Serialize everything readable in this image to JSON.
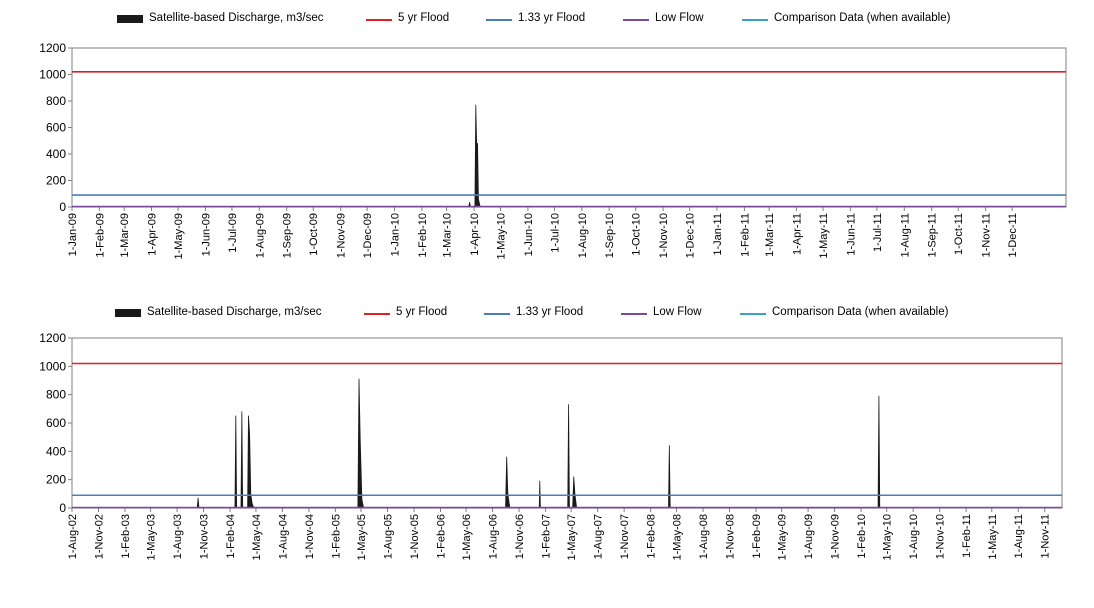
{
  "colors": {
    "discharge": "#1a1a1a",
    "flood_5yr": "#e02020",
    "flood_133yr": "#4a7ebb",
    "low_flow": "#7a4a9a",
    "comparison": "#3aa0c8",
    "axis": "#808080"
  },
  "legend": {
    "discharge": "Satellite-based Discharge, m3/sec",
    "flood_5yr": "5 yr Flood",
    "flood_133yr": "1.33 yr Flood",
    "low_flow": "Low Flow",
    "comparison": "Comparison Data (when available)"
  },
  "chart_data": [
    {
      "type": "area",
      "legend_position": "top",
      "grid": false,
      "ylim": [
        0,
        1200
      ],
      "yticks": [
        0,
        200,
        400,
        600,
        800,
        1000,
        1200
      ],
      "x_range": [
        "2009-01-01",
        "2012-01-31"
      ],
      "x_ticks": [
        "1-Jan-09",
        "1-Feb-09",
        "1-Mar-09",
        "1-Apr-09",
        "1-May-09",
        "1-Jun-09",
        "1-Jul-09",
        "1-Aug-09",
        "1-Sep-09",
        "1-Oct-09",
        "1-Nov-09",
        "1-Dec-09",
        "1-Jan-10",
        "1-Feb-10",
        "1-Mar-10",
        "1-Apr-10",
        "1-May-10",
        "1-Jun-10",
        "1-Jul-10",
        "1-Aug-10",
        "1-Sep-10",
        "1-Oct-10",
        "1-Nov-10",
        "1-Dec-10",
        "1-Jan-11",
        "1-Feb-11",
        "1-Mar-11",
        "1-Apr-11",
        "1-May-11",
        "1-Jun-11",
        "1-Jul-11",
        "1-Aug-11",
        "1-Sep-11",
        "1-Oct-11",
        "1-Nov-11",
        "1-Dec-11"
      ],
      "reference_lines": [
        {
          "key": "flood_5yr",
          "value": 1020
        },
        {
          "key": "flood_133yr",
          "value": 90
        },
        {
          "key": "low_flow",
          "value": 3
        }
      ],
      "series": [
        {
          "key": "discharge",
          "points": [
            {
              "x": "2010-03-26",
              "y": 0
            },
            {
              "x": "2010-03-27",
              "y": 35
            },
            {
              "x": "2010-03-28",
              "y": 0
            },
            {
              "x": "2010-04-02",
              "y": 0
            },
            {
              "x": "2010-04-03",
              "y": 770
            },
            {
              "x": "2010-04-04",
              "y": 470
            },
            {
              "x": "2010-04-05",
              "y": 480
            },
            {
              "x": "2010-04-06",
              "y": 60
            },
            {
              "x": "2010-04-08",
              "y": 0
            }
          ]
        }
      ]
    },
    {
      "type": "area",
      "legend_position": "top",
      "grid": false,
      "ylim": [
        0,
        1200
      ],
      "yticks": [
        0,
        200,
        400,
        600,
        800,
        1000,
        1200
      ],
      "x_range": [
        "2002-08-01",
        "2011-12-31"
      ],
      "x_ticks": [
        "1-Aug-02",
        "1-Nov-02",
        "1-Feb-03",
        "1-May-03",
        "1-Aug-03",
        "1-Nov-03",
        "1-Feb-04",
        "1-May-04",
        "1-Aug-04",
        "1-Nov-04",
        "1-Feb-05",
        "1-May-05",
        "1-Aug-05",
        "1-Nov-05",
        "1-Feb-06",
        "1-May-06",
        "1-Aug-06",
        "1-Nov-06",
        "1-Feb-07",
        "1-May-07",
        "1-Aug-07",
        "1-Nov-07",
        "1-Feb-08",
        "1-May-08",
        "1-Aug-08",
        "1-Nov-08",
        "1-Feb-09",
        "1-May-09",
        "1-Aug-09",
        "1-Nov-09",
        "1-Feb-10",
        "1-May-10",
        "1-Aug-10",
        "1-Nov-10",
        "1-Feb-11",
        "1-May-11",
        "1-Aug-11",
        "1-Nov-11"
      ],
      "reference_lines": [
        {
          "key": "flood_5yr",
          "value": 1020
        },
        {
          "key": "flood_133yr",
          "value": 90
        },
        {
          "key": "low_flow",
          "value": 3
        }
      ],
      "series": [
        {
          "key": "discharge",
          "points": [
            {
              "x": "2003-10-10",
              "y": 0
            },
            {
              "x": "2003-10-13",
              "y": 70
            },
            {
              "x": "2003-10-16",
              "y": 0
            },
            {
              "x": "2004-02-18",
              "y": 0
            },
            {
              "x": "2004-02-21",
              "y": 650
            },
            {
              "x": "2004-02-24",
              "y": 0
            },
            {
              "x": "2004-03-10",
              "y": 0
            },
            {
              "x": "2004-03-13",
              "y": 680
            },
            {
              "x": "2004-03-16",
              "y": 0
            },
            {
              "x": "2004-04-02",
              "y": 0
            },
            {
              "x": "2004-04-05",
              "y": 650
            },
            {
              "x": "2004-04-09",
              "y": 520
            },
            {
              "x": "2004-04-13",
              "y": 100
            },
            {
              "x": "2004-04-18",
              "y": 30
            },
            {
              "x": "2004-04-24",
              "y": 0
            },
            {
              "x": "2005-04-20",
              "y": 0
            },
            {
              "x": "2005-04-24",
              "y": 910
            },
            {
              "x": "2005-04-28",
              "y": 500
            },
            {
              "x": "2005-05-04",
              "y": 60
            },
            {
              "x": "2005-05-10",
              "y": 0
            },
            {
              "x": "2006-09-15",
              "y": 0
            },
            {
              "x": "2006-09-19",
              "y": 360
            },
            {
              "x": "2006-09-23",
              "y": 100
            },
            {
              "x": "2006-09-30",
              "y": 0
            },
            {
              "x": "2007-01-10",
              "y": 0
            },
            {
              "x": "2007-01-12",
              "y": 190
            },
            {
              "x": "2007-01-14",
              "y": 0
            },
            {
              "x": "2007-04-19",
              "y": 0
            },
            {
              "x": "2007-04-22",
              "y": 730
            },
            {
              "x": "2007-04-25",
              "y": 0
            },
            {
              "x": "2007-05-06",
              "y": 0
            },
            {
              "x": "2007-05-10",
              "y": 220
            },
            {
              "x": "2007-05-14",
              "y": 100
            },
            {
              "x": "2007-05-20",
              "y": 0
            },
            {
              "x": "2008-04-03",
              "y": 0
            },
            {
              "x": "2008-04-06",
              "y": 440
            },
            {
              "x": "2008-04-09",
              "y": 0
            },
            {
              "x": "2010-04-01",
              "y": 0
            },
            {
              "x": "2010-04-04",
              "y": 790
            },
            {
              "x": "2010-04-07",
              "y": 0
            }
          ]
        }
      ]
    }
  ]
}
